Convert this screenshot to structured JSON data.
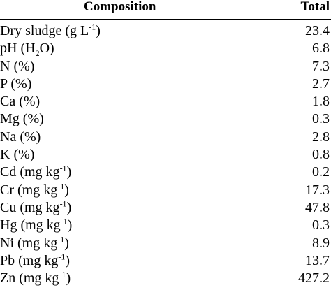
{
  "table": {
    "header": {
      "composition": "Composition",
      "total": "Total"
    },
    "rows": [
      {
        "name": "Dry sludge",
        "unit": "(g L",
        "sup": "-1",
        "unit_end": ")",
        "value": "23.4"
      },
      {
        "name": "pH",
        "unit": "(H",
        "sub": "2",
        "unit_end": "O)",
        "value": "6.8"
      },
      {
        "name": "N",
        "unit": "(%)",
        "value": "7.3"
      },
      {
        "name": "P",
        "unit": "(%)",
        "value": "2.7"
      },
      {
        "name": "Ca",
        "unit": "(%)",
        "value": "1.8"
      },
      {
        "name": "Mg",
        "unit": "(%)",
        "value": "0.3"
      },
      {
        "name": "Na",
        "unit": "(%)",
        "value": "2.8"
      },
      {
        "name": "K",
        "unit": "(%)",
        "value": "0.8"
      },
      {
        "name": "Cd",
        "unit": "(mg kg",
        "sup": "-1",
        "unit_end": ")",
        "value": "0.2"
      },
      {
        "name": "Cr",
        "unit": "(mg kg",
        "sup": "-1",
        "unit_end": ")",
        "value": "17.3"
      },
      {
        "name": "Cu",
        "unit": "(mg kg",
        "sup": "-1",
        "unit_end": ")",
        "value": "47.8"
      },
      {
        "name": "Hg",
        "unit": "(mg kg",
        "sup": "-1",
        "unit_end": ")",
        "value": "0.3"
      },
      {
        "name": "Ni",
        "unit": "(mg kg",
        "sup": "-1",
        "unit_end": ")",
        "value": "8.9"
      },
      {
        "name": "Pb",
        "unit": "(mg kg",
        "sup": "-1",
        "unit_end": ")",
        "value": "13.7"
      },
      {
        "name": "Zn",
        "unit": "(mg kg",
        "sup": "-1",
        "unit_end": ")",
        "value": "427.2"
      }
    ]
  }
}
